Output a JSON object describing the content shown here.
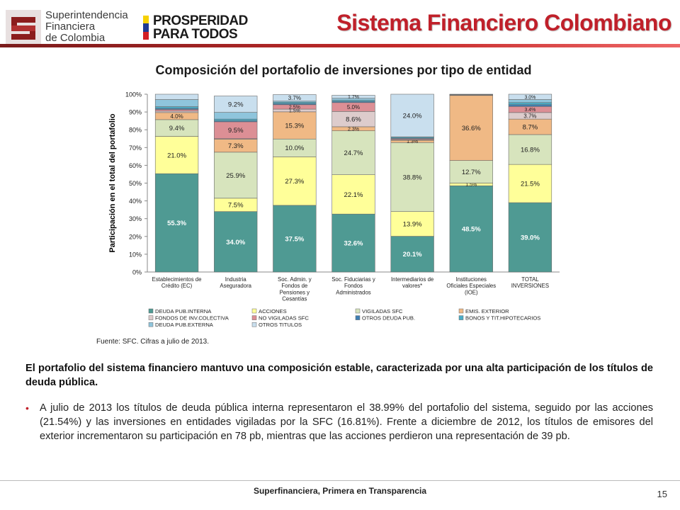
{
  "header": {
    "logo_lines": [
      "Superintendencia",
      "Financiera",
      "de Colombia"
    ],
    "pp_lines": [
      "PROSPERIDAD",
      "PARA TODOS"
    ],
    "title": "Sistema Financiero Colombiano"
  },
  "colors": {
    "title_red": "#c0202a",
    "flag": [
      "#f6d100",
      "#1f3a93",
      "#d31f26"
    ]
  },
  "chart_data": {
    "type": "bar",
    "stacked": true,
    "title": "Composición del portafolio de inversiones por tipo de entidad",
    "ylabel": "Participación en el total del portafolio",
    "ylim": [
      0,
      100
    ],
    "yticks": [
      "0%",
      "10%",
      "20%",
      "30%",
      "40%",
      "50%",
      "60%",
      "70%",
      "80%",
      "90%",
      "100%"
    ],
    "categories": [
      [
        "Establecimientos de",
        "Crédito (EC)"
      ],
      [
        "Industria",
        "Aseguradora"
      ],
      [
        "Soc. Admin. y",
        "Fondos de",
        "Pensiones y",
        "Cesantías"
      ],
      [
        "Soc. Fiduciarias y",
        "Fondos",
        "Administrados"
      ],
      [
        "Intermediarios de",
        "valores*"
      ],
      [
        "Instituciones",
        "Oficiales Especiales",
        "(IOE)"
      ],
      [
        "TOTAL",
        "INVERSIONES"
      ]
    ],
    "series": [
      {
        "name": "DEUDA PUB.INTERNA",
        "color": "#4f9a93",
        "values": [
          55.3,
          34.0,
          37.5,
          32.6,
          20.1,
          48.5,
          39.0
        ]
      },
      {
        "name": "ACCIONES",
        "color": "#ffff99",
        "values": [
          21.0,
          7.5,
          27.3,
          22.1,
          13.9,
          1.5,
          21.5
        ]
      },
      {
        "name": "VIGILADAS SFC",
        "color": "#d7e4bd",
        "values": [
          9.4,
          25.9,
          10.0,
          24.7,
          38.8,
          12.7,
          16.8
        ]
      },
      {
        "name": "EMIS. EXTERIOR",
        "color": "#f0b985",
        "values": [
          4.0,
          7.3,
          15.3,
          2.3,
          1.3,
          36.6,
          8.7
        ]
      },
      {
        "name": "FONDOS DE INV.COLECTIVA",
        "color": "#ddcccc",
        "values": [
          0.8,
          0.3,
          1.5,
          8.6,
          0.3,
          0.2,
          3.7
        ]
      },
      {
        "name": "NO VIGILADAS SFC",
        "color": "#dc8f95",
        "values": [
          0.9,
          9.5,
          2.5,
          5.0,
          0.5,
          0.1,
          3.4
        ]
      },
      {
        "name": "OTROS DEUDA PUB.",
        "color": "#3e7eb2",
        "values": [
          0.6,
          0.5,
          0.6,
          0.6,
          0.3,
          0.1,
          1.0
        ]
      },
      {
        "name": "BONOS Y TIT.HIPOTECARIOS",
        "color": "#4bacc6",
        "values": [
          1.0,
          1.0,
          0.8,
          0.7,
          0.6,
          0.1,
          1.2
        ]
      },
      {
        "name": "DEUDA PUB.EXTERNA",
        "color": "#8fc5dc",
        "values": [
          4.0,
          3.8,
          0.6,
          1.1,
          0.2,
          0.1,
          1.7
        ]
      },
      {
        "name": "OTROS TITULOS",
        "color": "#c9dfee",
        "values": [
          3.0,
          9.2,
          3.7,
          1.7,
          24.0,
          0.1,
          3.0
        ]
      }
    ],
    "data_labels": [
      [
        "55.3%",
        "21.0%",
        "9.4%",
        "4.0%",
        "",
        "",
        "",
        "",
        "",
        ""
      ],
      [
        "34.0%",
        "7.5%",
        "25.9%",
        "7.3%",
        "",
        "9.5%",
        "",
        "",
        "",
        "9.2%"
      ],
      [
        "37.5%",
        "27.3%",
        "10.0%",
        "15.3%",
        "1.5%",
        "2.5%",
        "",
        "",
        "",
        "3.7%"
      ],
      [
        "32.6%",
        "22.1%",
        "24.7%",
        "2.3%",
        "8.6%",
        "5.0%",
        "",
        "",
        "",
        "1.7%"
      ],
      [
        "20.1%",
        "13.9%",
        "38.8%",
        "1.3%",
        "",
        "",
        "",
        "",
        "",
        "24.0%"
      ],
      [
        "48.5%",
        "1.5%",
        "12.7%",
        "36.6%",
        "",
        "",
        "",
        "",
        "",
        ""
      ],
      [
        "39.0%",
        "21.5%",
        "16.8%",
        "8.7%",
        "3.7%",
        "3.4%",
        "",
        "",
        "",
        "3.0%"
      ]
    ],
    "legend_position": "bottom",
    "source": "Fuente: SFC. Cifras a julio de 2013."
  },
  "body": {
    "intro": "El portafolio del sistema financiero mantuvo una composición estable, caracterizada por una alta participación de los títulos de deuda pública.",
    "bullet": "A julio de 2013 los títulos de deuda pública interna representaron el 38.99% del portafolio del sistema, seguido por las acciones (21.54%) y las inversiones en entidades vigiladas por la SFC (16.81%). Frente a diciembre de 2012, los títulos de emisores del exterior incrementaron su participación en 78 pb, mientras que las acciones perdieron una representación de 39 pb."
  },
  "footer": {
    "text": "Superfinanciera, Primera en Transparencia",
    "page": "15"
  }
}
